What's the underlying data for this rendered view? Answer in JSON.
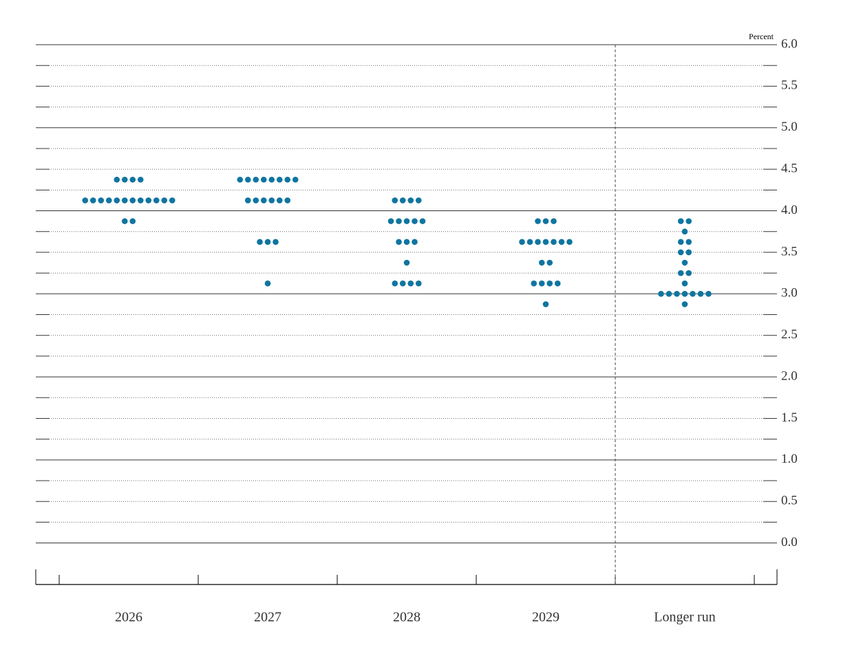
{
  "chart_data": {
    "type": "dot",
    "y_unit": "Percent",
    "categories": [
      "2026",
      "2027",
      "2028",
      "2029",
      "Longer run"
    ],
    "dots": [
      [
        4.375,
        4.375,
        4.375,
        4.375,
        4.125,
        4.125,
        4.125,
        4.125,
        4.125,
        4.125,
        4.125,
        4.125,
        4.125,
        4.125,
        4.125,
        4.125,
        3.875,
        3.875
      ],
      [
        4.375,
        4.375,
        4.375,
        4.375,
        4.375,
        4.375,
        4.375,
        4.375,
        4.125,
        4.125,
        4.125,
        4.125,
        4.125,
        4.125,
        3.625,
        3.625,
        3.625,
        3.125
      ],
      [
        4.125,
        4.125,
        4.125,
        4.125,
        3.875,
        3.875,
        3.875,
        3.875,
        3.875,
        3.625,
        3.625,
        3.625,
        3.375,
        3.125,
        3.125,
        3.125,
        3.125
      ],
      [
        3.875,
        3.875,
        3.875,
        3.625,
        3.625,
        3.625,
        3.625,
        3.625,
        3.625,
        3.625,
        3.375,
        3.375,
        3.125,
        3.125,
        3.125,
        3.125,
        2.875
      ],
      [
        3.875,
        3.875,
        3.75,
        3.625,
        3.625,
        3.5,
        3.5,
        3.375,
        3.25,
        3.25,
        3.125,
        3,
        3,
        3,
        3,
        3,
        3,
        3,
        2.875
      ]
    ],
    "color": "#0f75a0",
    "ylim": [
      -0.5,
      6
    ],
    "yticks": [
      {
        "value": 0,
        "label": "0.0"
      },
      {
        "value": 0.5,
        "label": "0.5"
      },
      {
        "value": 1,
        "label": "1.0"
      },
      {
        "value": 1.5,
        "label": "1.5"
      },
      {
        "value": 2,
        "label": "2.0"
      },
      {
        "value": 2.5,
        "label": "2.5"
      },
      {
        "value": 3,
        "label": "3.0"
      },
      {
        "value": 3.5,
        "label": "3.5"
      },
      {
        "value": 4,
        "label": "4.0"
      },
      {
        "value": 4.5,
        "label": "4.5"
      },
      {
        "value": 5,
        "label": "5.0"
      },
      {
        "value": 5.5,
        "label": "5.5"
      },
      {
        "value": 6,
        "label": "6.0"
      }
    ],
    "minor_yticks": [
      0.25,
      0.75,
      1.25,
      1.75,
      2.25,
      2.75,
      3.25,
      3.75,
      4.25,
      4.75,
      5.25,
      5.75
    ],
    "grid": true
  }
}
